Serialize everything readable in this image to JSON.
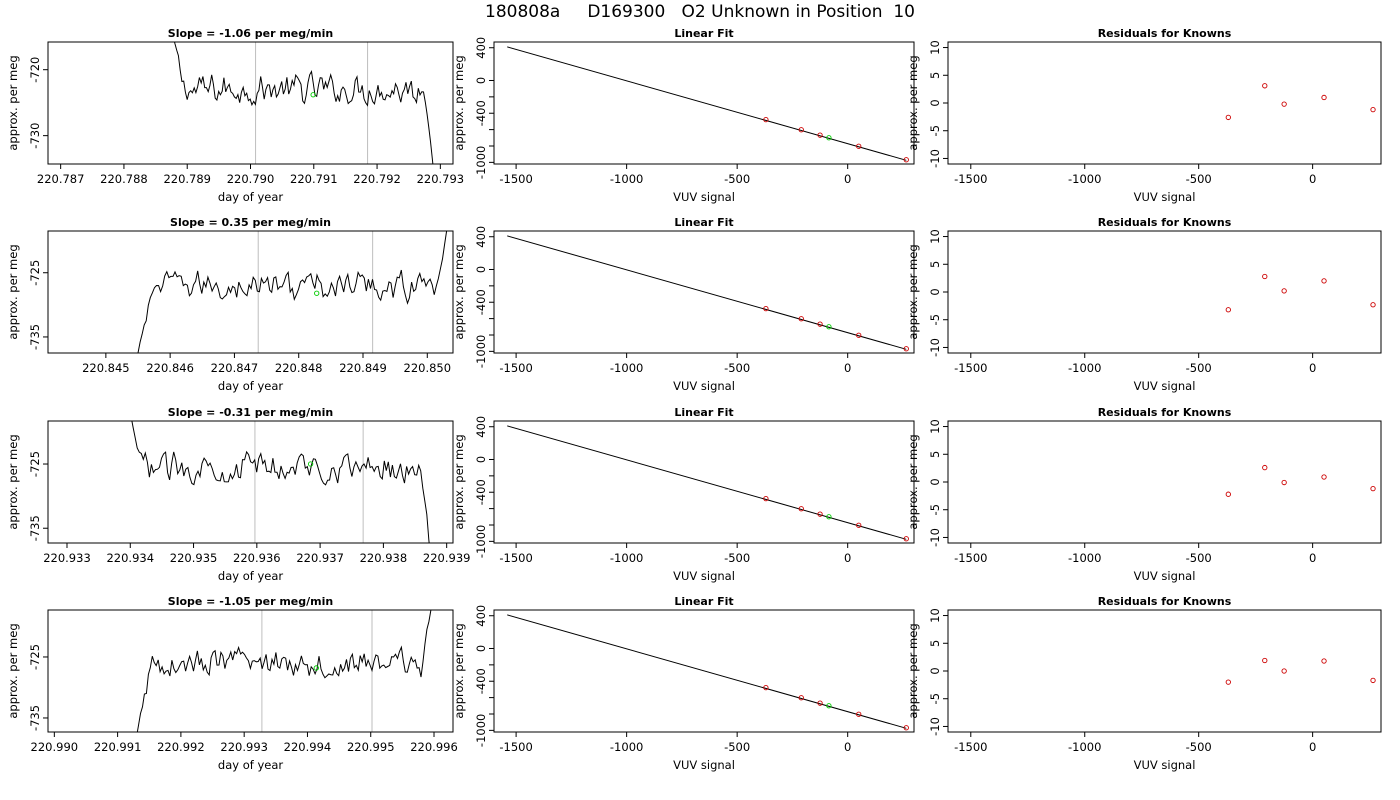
{
  "title": "180808a     D169300   O2 Unknown in Position  10",
  "colors": {
    "trace": "#000000",
    "guide": "#bebebe",
    "known": "#cd0000",
    "unknown": "#00cd00",
    "frame": "#000000"
  },
  "rows": [
    {
      "trace": {
        "title": "Slope =  -1.06  per meg/min",
        "xlabel": "day of year",
        "ylabel": "approx. per meg",
        "xlim": [
          220.7868,
          220.7932
        ],
        "ylim": [
          -734.3,
          -715.8
        ],
        "xticks": [
          "220.787",
          "220.788",
          "220.789",
          "220.790",
          "220.791",
          "220.792",
          "220.793"
        ],
        "yticks": [
          "-720",
          "-730"
        ],
        "x_start": 220.78875,
        "x_end": 220.7929,
        "level": -723.0,
        "start_level": -714.0,
        "end_level": -736.0,
        "guides": [
          220.79008,
          220.79185
        ],
        "unknown_point": {
          "x": 220.79099,
          "y": -723.8
        }
      },
      "fit": {
        "title": "Linear Fit",
        "xlabel": "VUV signal",
        "ylabel": "approx. per meg",
        "xlim": [
          -1600,
          300
        ],
        "ylim": [
          -1020,
          470
        ],
        "xticks": [
          "-1500",
          "-1000",
          "-500",
          "0"
        ],
        "yticks": [
          "400",
          "0",
          "-400",
          "-1000"
        ],
        "line": [
          [
            -1540,
            410
          ],
          [
            265,
            -975
          ]
        ],
        "knowns": [
          [
            -370,
            -478
          ],
          [
            -210,
            -602
          ],
          [
            -125,
            -668
          ],
          [
            50,
            -803
          ],
          [
            265,
            -968
          ]
        ],
        "unknown": [
          -85,
          -699
        ]
      },
      "resid": {
        "title": "Residuals for Knowns",
        "xlabel": "VUV signal",
        "xlim": [
          -1600,
          300
        ],
        "ylim": [
          -11,
          11
        ],
        "xticks": [
          "-1500",
          "-1000",
          "-500",
          "0"
        ],
        "yticks": [
          "10",
          "5",
          "0",
          "-5",
          "-10"
        ],
        "points": [
          [
            -370,
            -2.6
          ],
          [
            -210,
            3.1
          ],
          [
            -125,
            -0.2
          ],
          [
            50,
            1.0
          ],
          [
            265,
            -1.2
          ]
        ]
      }
    },
    {
      "trace": {
        "title": "Slope =  0.35  per meg/min",
        "xlabel": "day of year",
        "ylabel": "approx. per meg",
        "xlim": [
          220.8441,
          220.8504
        ],
        "ylim": [
          -737.5,
          -718.5
        ],
        "xticks": [
          "220.845",
          "220.846",
          "220.847",
          "220.848",
          "220.849",
          "220.850"
        ],
        "yticks": [
          "-725",
          "-735"
        ],
        "x_start": 220.8455,
        "x_end": 220.8503,
        "level": -727.0,
        "start_level": -737.5,
        "end_level": -718.5,
        "guides": [
          220.84737,
          220.84915
        ],
        "unknown_point": {
          "x": 220.84828,
          "y": -728.2
        }
      },
      "fit": {
        "title": "Linear Fit",
        "xlabel": "VUV signal",
        "ylabel": "approx. per meg",
        "xlim": [
          -1600,
          300
        ],
        "ylim": [
          -1020,
          470
        ],
        "xticks": [
          "-1500",
          "-1000",
          "-500",
          "0"
        ],
        "yticks": [
          "400",
          "0",
          "-400",
          "-1000"
        ],
        "line": [
          [
            -1540,
            410
          ],
          [
            265,
            -975
          ]
        ],
        "knowns": [
          [
            -370,
            -478
          ],
          [
            -210,
            -602
          ],
          [
            -125,
            -668
          ],
          [
            50,
            -803
          ],
          [
            265,
            -968
          ]
        ],
        "unknown": [
          -85,
          -699
        ]
      },
      "resid": {
        "title": "Residuals for Knowns",
        "xlabel": "VUV signal",
        "xlim": [
          -1600,
          300
        ],
        "ylim": [
          -11,
          11
        ],
        "xticks": [
          "-1500",
          "-1000",
          "-500",
          "0"
        ],
        "yticks": [
          "10",
          "5",
          "0",
          "-5",
          "-10"
        ],
        "points": [
          [
            -370,
            -3.2
          ],
          [
            -210,
            2.8
          ],
          [
            -125,
            0.2
          ],
          [
            50,
            2.0
          ],
          [
            265,
            -2.3
          ]
        ]
      }
    },
    {
      "trace": {
        "title": "Slope =  -0.31  per meg/min",
        "xlabel": "day of year",
        "ylabel": "approx. per meg",
        "xlim": [
          220.9327,
          220.9391
        ],
        "ylim": [
          -737.3,
          -718.3
        ],
        "xticks": [
          "220.933",
          "220.934",
          "220.935",
          "220.936",
          "220.937",
          "220.938",
          "220.939"
        ],
        "yticks": [
          "-725",
          "-735"
        ],
        "x_start": 220.93395,
        "x_end": 220.93875,
        "level": -725.5,
        "start_level": -716.0,
        "end_level": -740.0,
        "guides": [
          220.93597,
          220.93768
        ],
        "unknown_point": {
          "x": 220.93685,
          "y": -725.0
        }
      },
      "fit": {
        "title": "Linear Fit",
        "xlabel": "VUV signal",
        "ylabel": "approx. per meg",
        "xlim": [
          -1600,
          300
        ],
        "ylim": [
          -1020,
          470
        ],
        "xticks": [
          "-1500",
          "-1000",
          "-500",
          "0"
        ],
        "yticks": [
          "400",
          "0",
          "-400",
          "-1000"
        ],
        "line": [
          [
            -1540,
            410
          ],
          [
            265,
            -975
          ]
        ],
        "knowns": [
          [
            -370,
            -478
          ],
          [
            -210,
            -602
          ],
          [
            -125,
            -668
          ],
          [
            50,
            -803
          ],
          [
            265,
            -968
          ]
        ],
        "unknown": [
          -85,
          -699
        ]
      },
      "resid": {
        "title": "Residuals for Knowns",
        "xlabel": "VUV signal",
        "xlim": [
          -1600,
          300
        ],
        "ylim": [
          -11,
          11
        ],
        "xticks": [
          "-1500",
          "-1000",
          "-500",
          "0"
        ],
        "yticks": [
          "10",
          "5",
          "0",
          "-5",
          "-10"
        ],
        "points": [
          [
            -370,
            -2.2
          ],
          [
            -210,
            2.6
          ],
          [
            -125,
            -0.1
          ],
          [
            50,
            0.9
          ],
          [
            265,
            -1.2
          ]
        ]
      }
    },
    {
      "trace": {
        "title": "Slope =  -1.05  per meg/min",
        "xlabel": "day of year",
        "ylabel": "approx. per meg",
        "xlim": [
          220.9899,
          220.9963
        ],
        "ylim": [
          -737.3,
          -717.3
        ],
        "xticks": [
          "220.990",
          "220.991",
          "220.992",
          "220.993",
          "220.994",
          "220.995",
          "220.996"
        ],
        "yticks": [
          "-725",
          "-735"
        ],
        "x_start": 220.9913,
        "x_end": 220.99595,
        "level": -726.0,
        "start_level": -738.0,
        "end_level": -717.3,
        "guides": [
          220.99328,
          220.99502
        ],
        "unknown_point": {
          "x": 220.99414,
          "y": -726.8
        }
      },
      "fit": {
        "title": "Linear Fit",
        "xlabel": "VUV signal",
        "ylabel": "approx. per meg",
        "xlim": [
          -1600,
          300
        ],
        "ylim": [
          -1020,
          470
        ],
        "xticks": [
          "-1500",
          "-1000",
          "-500",
          "0"
        ],
        "yticks": [
          "400",
          "0",
          "-400",
          "-1000"
        ],
        "line": [
          [
            -1540,
            410
          ],
          [
            265,
            -975
          ]
        ],
        "knowns": [
          [
            -370,
            -478
          ],
          [
            -210,
            -602
          ],
          [
            -125,
            -668
          ],
          [
            50,
            -803
          ],
          [
            265,
            -968
          ]
        ],
        "unknown": [
          -85,
          -699
        ]
      },
      "resid": {
        "title": "Residuals for Knowns",
        "xlabel": "VUV signal",
        "xlim": [
          -1600,
          300
        ],
        "ylim": [
          -11,
          11
        ],
        "xticks": [
          "-1500",
          "-1000",
          "-500",
          "0"
        ],
        "yticks": [
          "10",
          "5",
          "0",
          "-5",
          "-10"
        ],
        "points": [
          [
            -370,
            -2.0
          ],
          [
            -210,
            1.9
          ],
          [
            -125,
            0.0
          ],
          [
            50,
            1.8
          ],
          [
            265,
            -1.7
          ]
        ]
      }
    }
  ],
  "chart_data": [
    {
      "type": "line",
      "title": "Slope =  -1.06  per meg/min",
      "xlabel": "day of year",
      "ylabel": "approx. per meg",
      "xlim": [
        220.7868,
        220.7932
      ],
      "ylim": [
        -734.3,
        -715.8
      ],
      "grid": false
    },
    {
      "type": "scatter",
      "title": "Linear Fit",
      "xlabel": "VUV signal",
      "ylabel": "approx. per meg",
      "xlim": [
        -1600,
        300
      ],
      "ylim": [
        -1020,
        470
      ],
      "grid": false
    },
    {
      "type": "scatter",
      "title": "Residuals for Knowns",
      "xlabel": "VUV signal",
      "ylabel": "approx. per meg",
      "xlim": [
        -1600,
        300
      ],
      "ylim": [
        -11,
        11
      ],
      "grid": false
    }
  ]
}
